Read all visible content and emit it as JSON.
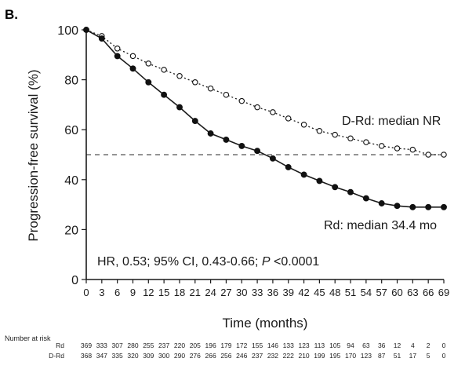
{
  "chart_data": {
    "type": "line",
    "panel_label": "B.",
    "xlabel": "Time (months)",
    "ylabel": "Progression-free survival (%)",
    "xlim": [
      0,
      69
    ],
    "ylim": [
      0,
      100
    ],
    "x_ticks": [
      0,
      3,
      6,
      9,
      12,
      15,
      18,
      21,
      24,
      27,
      30,
      33,
      36,
      39,
      42,
      45,
      48,
      51,
      54,
      57,
      60,
      63,
      66,
      69
    ],
    "y_ticks": [
      0,
      20,
      40,
      60,
      80,
      100
    ],
    "reference_line": {
      "y": 50,
      "style": "dashed"
    },
    "grid": false,
    "series": [
      {
        "name": "D-Rd",
        "style": "dotted-open-circles",
        "x": [
          0,
          3,
          6,
          9,
          12,
          15,
          18,
          21,
          24,
          27,
          30,
          33,
          36,
          39,
          42,
          45,
          48,
          51,
          54,
          57,
          60,
          63,
          66,
          69
        ],
        "y": [
          100,
          97.5,
          92.5,
          89.5,
          86.5,
          84,
          81.5,
          79,
          76.5,
          74,
          71.5,
          69,
          67,
          64.5,
          62,
          59.5,
          58,
          56.5,
          55,
          53.5,
          52.5,
          52,
          50,
          50
        ]
      },
      {
        "name": "Rd",
        "style": "solid-filled-circles",
        "x": [
          0,
          3,
          6,
          9,
          12,
          15,
          18,
          21,
          24,
          27,
          30,
          33,
          36,
          39,
          42,
          45,
          48,
          51,
          54,
          57,
          60,
          63,
          66,
          69
        ],
        "y": [
          100,
          96.5,
          89.5,
          84.5,
          79,
          74,
          69,
          63.5,
          58.5,
          56,
          53.5,
          51.5,
          48.5,
          45,
          42,
          39.5,
          37,
          35,
          32.5,
          30.5,
          29.5,
          29,
          29,
          29
        ]
      }
    ],
    "annotations": {
      "d_rd": "D-Rd: median NR",
      "rd": "Rd: median 34.4 mo",
      "hr": "HR, 0.53; 95% CI, 0.43-0.66; ",
      "p_letter": "P",
      "p_value": " <0.0001"
    },
    "risk_table": {
      "title": "Number at risk",
      "rows": [
        {
          "label": "Rd",
          "values": [
            "369",
            "333",
            "307",
            "280",
            "255",
            "237",
            "220",
            "205",
            "196",
            "179",
            "172",
            "155",
            "146",
            "133",
            "123",
            "113",
            "105",
            "94",
            "63",
            "36",
            "12",
            "4",
            "2",
            "0"
          ]
        },
        {
          "label": "D-Rd",
          "values": [
            "368",
            "347",
            "335",
            "320",
            "309",
            "300",
            "290",
            "276",
            "266",
            "256",
            "246",
            "237",
            "232",
            "222",
            "210",
            "199",
            "195",
            "170",
            "123",
            "87",
            "51",
            "17",
            "5",
            "0"
          ]
        }
      ]
    }
  }
}
